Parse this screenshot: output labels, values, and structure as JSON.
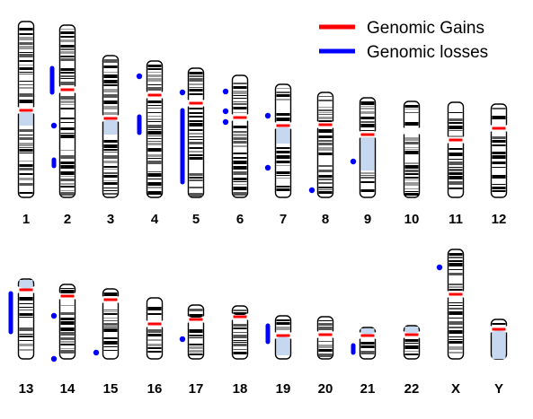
{
  "legend": {
    "gains_label": "Genomic Gains",
    "losses_label": "Genomic losses",
    "gains_color": "#ff0000",
    "losses_color": "#0000ff"
  },
  "chromosomes": [
    {
      "label": "1",
      "losses": [],
      "regions": []
    },
    {
      "label": "2",
      "losses": [
        "p-arm segment",
        "q-arm spot",
        "q-arm spot"
      ],
      "regions": []
    },
    {
      "label": "3",
      "losses": [],
      "regions": []
    },
    {
      "label": "4",
      "losses": [
        "p-arm spot",
        "q-arm segment"
      ],
      "regions": []
    },
    {
      "label": "5",
      "losses": [
        "p-arm spot",
        "q-arm segment"
      ],
      "regions": []
    },
    {
      "label": "6",
      "losses": [
        "p-arm spot",
        "p-arm spot",
        "q-arm spot"
      ],
      "regions": []
    },
    {
      "label": "7",
      "losses": [
        "spot",
        "spot"
      ],
      "regions": []
    },
    {
      "label": "8",
      "losses": [
        "q-arm spot"
      ],
      "regions": []
    },
    {
      "label": "9",
      "losses": [
        "q-arm spot"
      ],
      "regions": []
    },
    {
      "label": "10",
      "losses": [],
      "regions": []
    },
    {
      "label": "11",
      "losses": [],
      "regions": []
    },
    {
      "label": "12",
      "losses": [],
      "regions": []
    },
    {
      "label": "13",
      "losses": [
        "segment"
      ],
      "regions": []
    },
    {
      "label": "14",
      "losses": [
        "spot",
        "spot"
      ],
      "regions": []
    },
    {
      "label": "15",
      "losses": [
        "spot"
      ],
      "regions": []
    },
    {
      "label": "16",
      "losses": [],
      "regions": []
    },
    {
      "label": "17",
      "losses": [
        "spot"
      ],
      "regions": []
    },
    {
      "label": "18",
      "losses": [],
      "regions": []
    },
    {
      "label": "19",
      "losses": [
        "segment"
      ],
      "regions": []
    },
    {
      "label": "20",
      "losses": [],
      "regions": []
    },
    {
      "label": "21",
      "losses": [
        "segment"
      ],
      "regions": []
    },
    {
      "label": "22",
      "losses": [],
      "regions": []
    },
    {
      "label": "X",
      "losses": [
        "spot"
      ],
      "regions": []
    },
    {
      "label": "Y",
      "losses": [],
      "regions": []
    }
  ]
}
